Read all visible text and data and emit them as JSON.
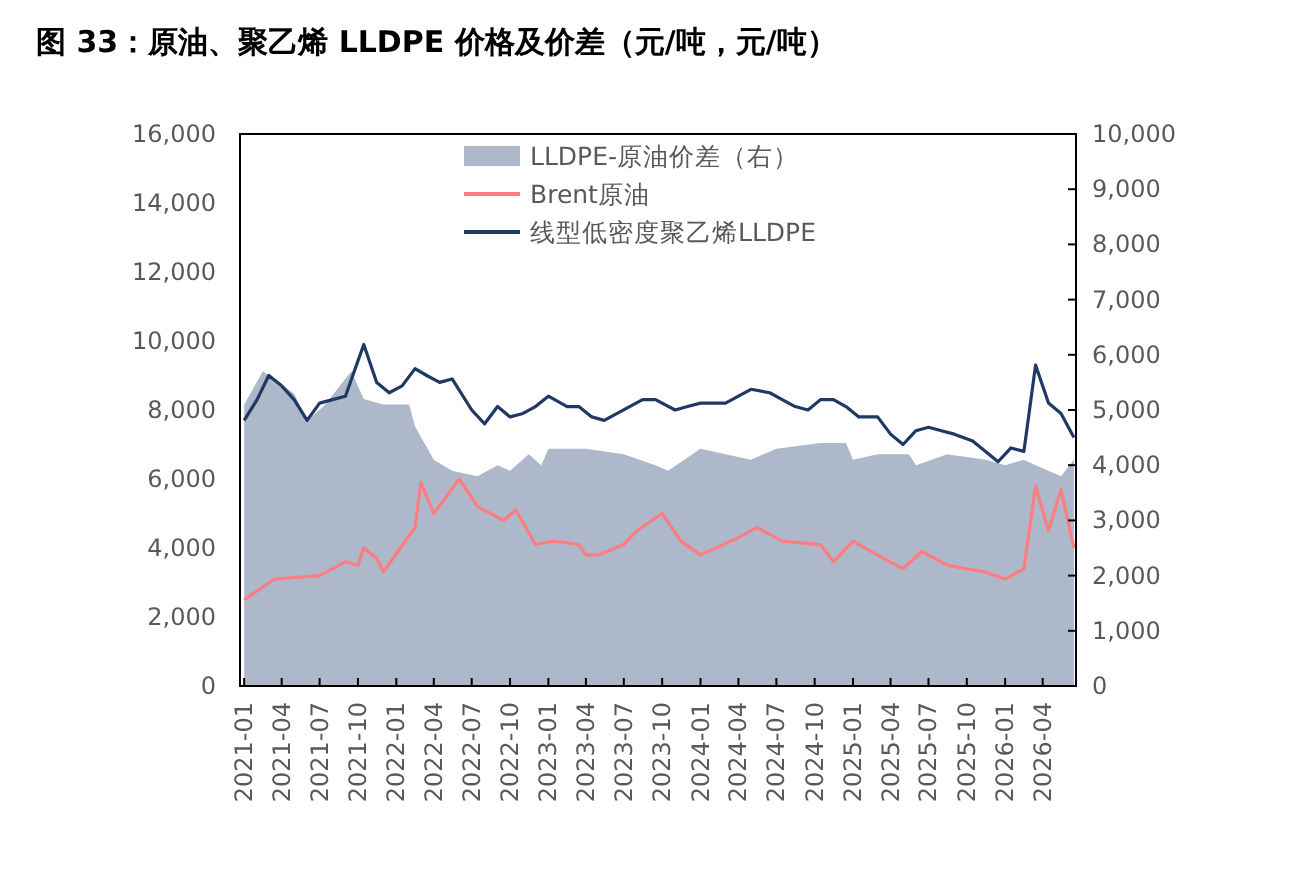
{
  "chart_data": {
    "type": "line",
    "title": "图 33：原油、聚乙烯 LLDPE 价格及价差（元/吨，元/吨）",
    "xlim": [
      "2020-12-22",
      "2026-06-20"
    ],
    "xticks": [
      "2021-01",
      "2021-04",
      "2021-07",
      "2021-10",
      "2022-01",
      "2022-04",
      "2022-07",
      "2022-10",
      "2023-01",
      "2023-04",
      "2023-07",
      "2023-10",
      "2024-01",
      "2024-04",
      "2024-07",
      "2024-10",
      "2025-01",
      "2025-04",
      "2025-07",
      "2025-10",
      "2026-01",
      "2026-04"
    ],
    "ylim": [
      0,
      16000
    ],
    "yticks": [
      0,
      {
        "value": 2000,
        "label": "2,000"
      },
      {
        "value": 4000,
        "label": "4,000"
      },
      {
        "value": 6000,
        "label": "6,000"
      },
      {
        "value": 8000,
        "label": "8,000"
      },
      {
        "value": 10000,
        "label": "10,000"
      },
      {
        "value": 12000,
        "label": "12,000"
      },
      {
        "value": 14000,
        "label": "14,000"
      },
      {
        "value": 16000,
        "label": "16,000"
      }
    ],
    "y2lim": [
      0,
      10000
    ],
    "y2ticks": [
      0,
      {
        "value": 1000,
        "label": "1,000"
      },
      {
        "value": 2000,
        "label": "2,000"
      },
      {
        "value": 3000,
        "label": "3,000"
      },
      {
        "value": 4000,
        "label": "4,000"
      },
      {
        "value": 5000,
        "label": "5,000"
      },
      {
        "value": 6000,
        "label": "6,000"
      },
      {
        "value": 7000,
        "label": "7,000"
      },
      {
        "value": 8000,
        "label": "8,000"
      },
      {
        "value": 9000,
        "label": "9,000"
      },
      {
        "value": 10000,
        "label": "10,000"
      }
    ],
    "legend": "top",
    "grid": false,
    "series": [
      {
        "name": "LLDPE-原油价差（右）",
        "type": "area",
        "axis": "y2",
        "color": "#adb9ca",
        "x": [
          "2021-01-01",
          "2021-02-15",
          "2021-05-01",
          "2021-06-01",
          "2021-07-15",
          "2021-09-15",
          "2021-10-15",
          "2021-12-01",
          "2022-02-01",
          "2022-02-15",
          "2022-04-01",
          "2022-05-15",
          "2022-07-15",
          "2022-09-01",
          "2022-10-01",
          "2022-11-15",
          "2022-12-15",
          "2023-01-01",
          "2023-04-01",
          "2023-07-01",
          "2023-09-15",
          "2023-10-15",
          "2024-01-01",
          "2024-05-01",
          "2024-07-01",
          "2024-10-15",
          "2024-12-15",
          "2025-01-01",
          "2025-03-01",
          "2025-05-15",
          "2025-06-01",
          "2025-08-15",
          "2025-11-15",
          "2026-01-01",
          "2026-02-15",
          "2026-03-15",
          "2026-05-15",
          "2026-06-15"
        ],
        "values": [
          5100,
          5700,
          5300,
          4800,
          5100,
          5700,
          5200,
          5100,
          5100,
          4700,
          4100,
          3900,
          3800,
          4000,
          3900,
          4200,
          4000,
          4300,
          4300,
          4200,
          4000,
          3900,
          4300,
          4100,
          4300,
          4400,
          4400,
          4100,
          4200,
          4200,
          4000,
          4200,
          4100,
          4000,
          4100,
          4000,
          3800,
          4100
        ]
      },
      {
        "name": "Brent原油",
        "color": "#ff7c80",
        "x": [
          "2021-01-01",
          "2021-03-15",
          "2021-07-01",
          "2021-09-01",
          "2021-10-01",
          "2021-10-15",
          "2021-11-15",
          "2021-12-01",
          "2022-02-15",
          "2022-03-01",
          "2022-04-01",
          "2022-06-01",
          "2022-07-15",
          "2022-09-15",
          "2022-10-15",
          "2022-12-01",
          "2023-01-15",
          "2023-03-15",
          "2023-04-01",
          "2023-05-01",
          "2023-07-01",
          "2023-08-01",
          "2023-10-01",
          "2023-11-15",
          "2024-01-01",
          "2024-04-01",
          "2024-05-15",
          "2024-07-15",
          "2024-10-15",
          "2024-11-15",
          "2025-01-01",
          "2025-03-15",
          "2025-05-01",
          "2025-06-15",
          "2025-08-15",
          "2025-11-15",
          "2026-01-01",
          "2026-02-15",
          "2026-03-15",
          "2026-04-15",
          "2026-05-15",
          "2026-06-15"
        ],
        "values": [
          2500,
          3100,
          3200,
          3600,
          3500,
          4000,
          3700,
          3300,
          4600,
          5900,
          5000,
          6000,
          5200,
          4800,
          5100,
          4100,
          4200,
          4100,
          3800,
          3800,
          4100,
          4500,
          5000,
          4200,
          3800,
          4300,
          4600,
          4200,
          4100,
          3600,
          4200,
          3700,
          3400,
          3900,
          3500,
          3300,
          3100,
          3400,
          5800,
          4500,
          5700,
          4000
        ]
      },
      {
        "name": "线型低密度聚乙烯LLDPE",
        "color": "#1f3864",
        "x": [
          "2021-01-01",
          "2021-02-01",
          "2021-03-01",
          "2021-04-01",
          "2021-05-01",
          "2021-06-01",
          "2021-07-01",
          "2021-08-01",
          "2021-09-01",
          "2021-10-15",
          "2021-11-15",
          "2021-12-15",
          "2022-01-15",
          "2022-02-15",
          "2022-03-15",
          "2022-04-15",
          "2022-05-15",
          "2022-07-01",
          "2022-08-01",
          "2022-09-01",
          "2022-10-01",
          "2022-11-01",
          "2022-12-01",
          "2023-01-01",
          "2023-02-15",
          "2023-03-15",
          "2023-04-15",
          "2023-05-15",
          "2023-06-15",
          "2023-07-15",
          "2023-08-15",
          "2023-09-15",
          "2023-11-01",
          "2023-12-01",
          "2024-01-01",
          "2024-02-01",
          "2024-03-01",
          "2024-04-01",
          "2024-05-01",
          "2024-06-15",
          "2024-07-15",
          "2024-08-15",
          "2024-09-15",
          "2024-10-15",
          "2024-11-15",
          "2024-12-15",
          "2025-01-15",
          "2025-03-01",
          "2025-04-01",
          "2025-05-01",
          "2025-06-01",
          "2025-07-01",
          "2025-08-01",
          "2025-09-01",
          "2025-10-15",
          "2025-11-15",
          "2025-12-15",
          "2026-01-15",
          "2026-02-15",
          "2026-03-15",
          "2026-04-15",
          "2026-05-15",
          "2026-06-15"
        ],
        "values": [
          7700,
          8300,
          9000,
          8700,
          8300,
          7700,
          8200,
          8300,
          8400,
          9900,
          8800,
          8500,
          8700,
          9200,
          9000,
          8800,
          8900,
          8000,
          7600,
          8100,
          7800,
          7900,
          8100,
          8400,
          8100,
          8100,
          7800,
          7700,
          7900,
          8100,
          8300,
          8300,
          8000,
          8100,
          8200,
          8200,
          8200,
          8400,
          8600,
          8500,
          8300,
          8100,
          8000,
          8300,
          8300,
          8100,
          7800,
          7800,
          7300,
          7000,
          7400,
          7500,
          7400,
          7300,
          7100,
          6800,
          6500,
          6900,
          6800,
          9300,
          8200,
          7900,
          7200
        ]
      }
    ]
  }
}
